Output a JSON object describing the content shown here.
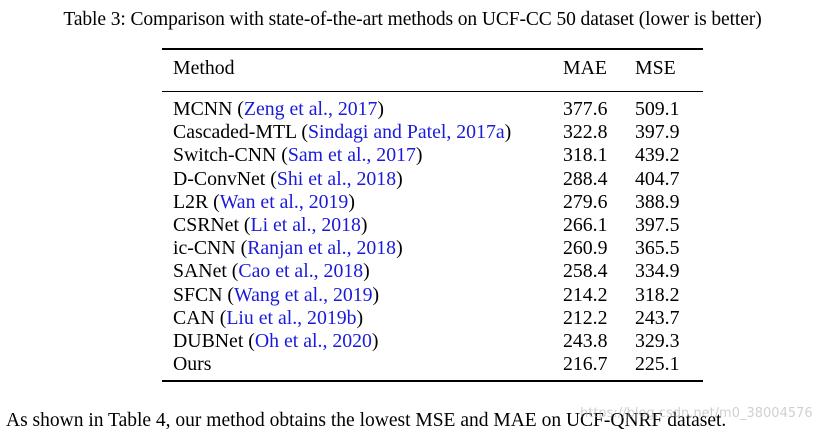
{
  "caption": "Table 3: Comparison with state-of-the-art methods on UCF-CC 50 dataset (lower is better)",
  "table": {
    "headers": {
      "method": "Method",
      "mae": "MAE",
      "mse": "MSE"
    },
    "rows": [
      {
        "name": "MCNN",
        "cite": "Zeng et al., 2017",
        "mae": "377.6",
        "mse": "509.1"
      },
      {
        "name": "Cascaded-MTL",
        "cite": "Sindagi and Patel, 2017a",
        "mae": "322.8",
        "mse": "397.9"
      },
      {
        "name": "Switch-CNN",
        "cite": "Sam et al., 2017",
        "mae": "318.1",
        "mse": "439.2"
      },
      {
        "name": "D-ConvNet",
        "cite": "Shi et al., 2018",
        "mae": "288.4",
        "mse": "404.7"
      },
      {
        "name": "L2R",
        "cite": "Wan et al., 2019",
        "mae": "279.6",
        "mse": "388.9"
      },
      {
        "name": "CSRNet",
        "cite": "Li et al., 2018",
        "mae": "266.1",
        "mse": "397.5"
      },
      {
        "name": "ic-CNN",
        "cite": "Ranjan et al., 2018",
        "mae": "260.9",
        "mse": "365.5"
      },
      {
        "name": "SANet",
        "cite": "Cao et al., 2018",
        "mae": "258.4",
        "mse": "334.9"
      },
      {
        "name": "SFCN",
        "cite": "Wang et al., 2019",
        "mae": "214.2",
        "mse": "318.2"
      },
      {
        "name": "CAN",
        "cite": "Liu et al., 2019b",
        "mae": "212.2",
        "mse": "243.7"
      },
      {
        "name": "DUBNet",
        "cite": "Oh et al., 2020",
        "mae": "243.8",
        "mse": "329.3"
      },
      {
        "name": "Ours",
        "cite": "",
        "mae": "216.7",
        "mse": "225.1"
      }
    ]
  },
  "footer_text": "As shown in Table 4, our method obtains the lowest MSE and MAE on UCF-QNRF dataset.",
  "watermark": "https://blog.csdn.net/m0_38004576"
}
